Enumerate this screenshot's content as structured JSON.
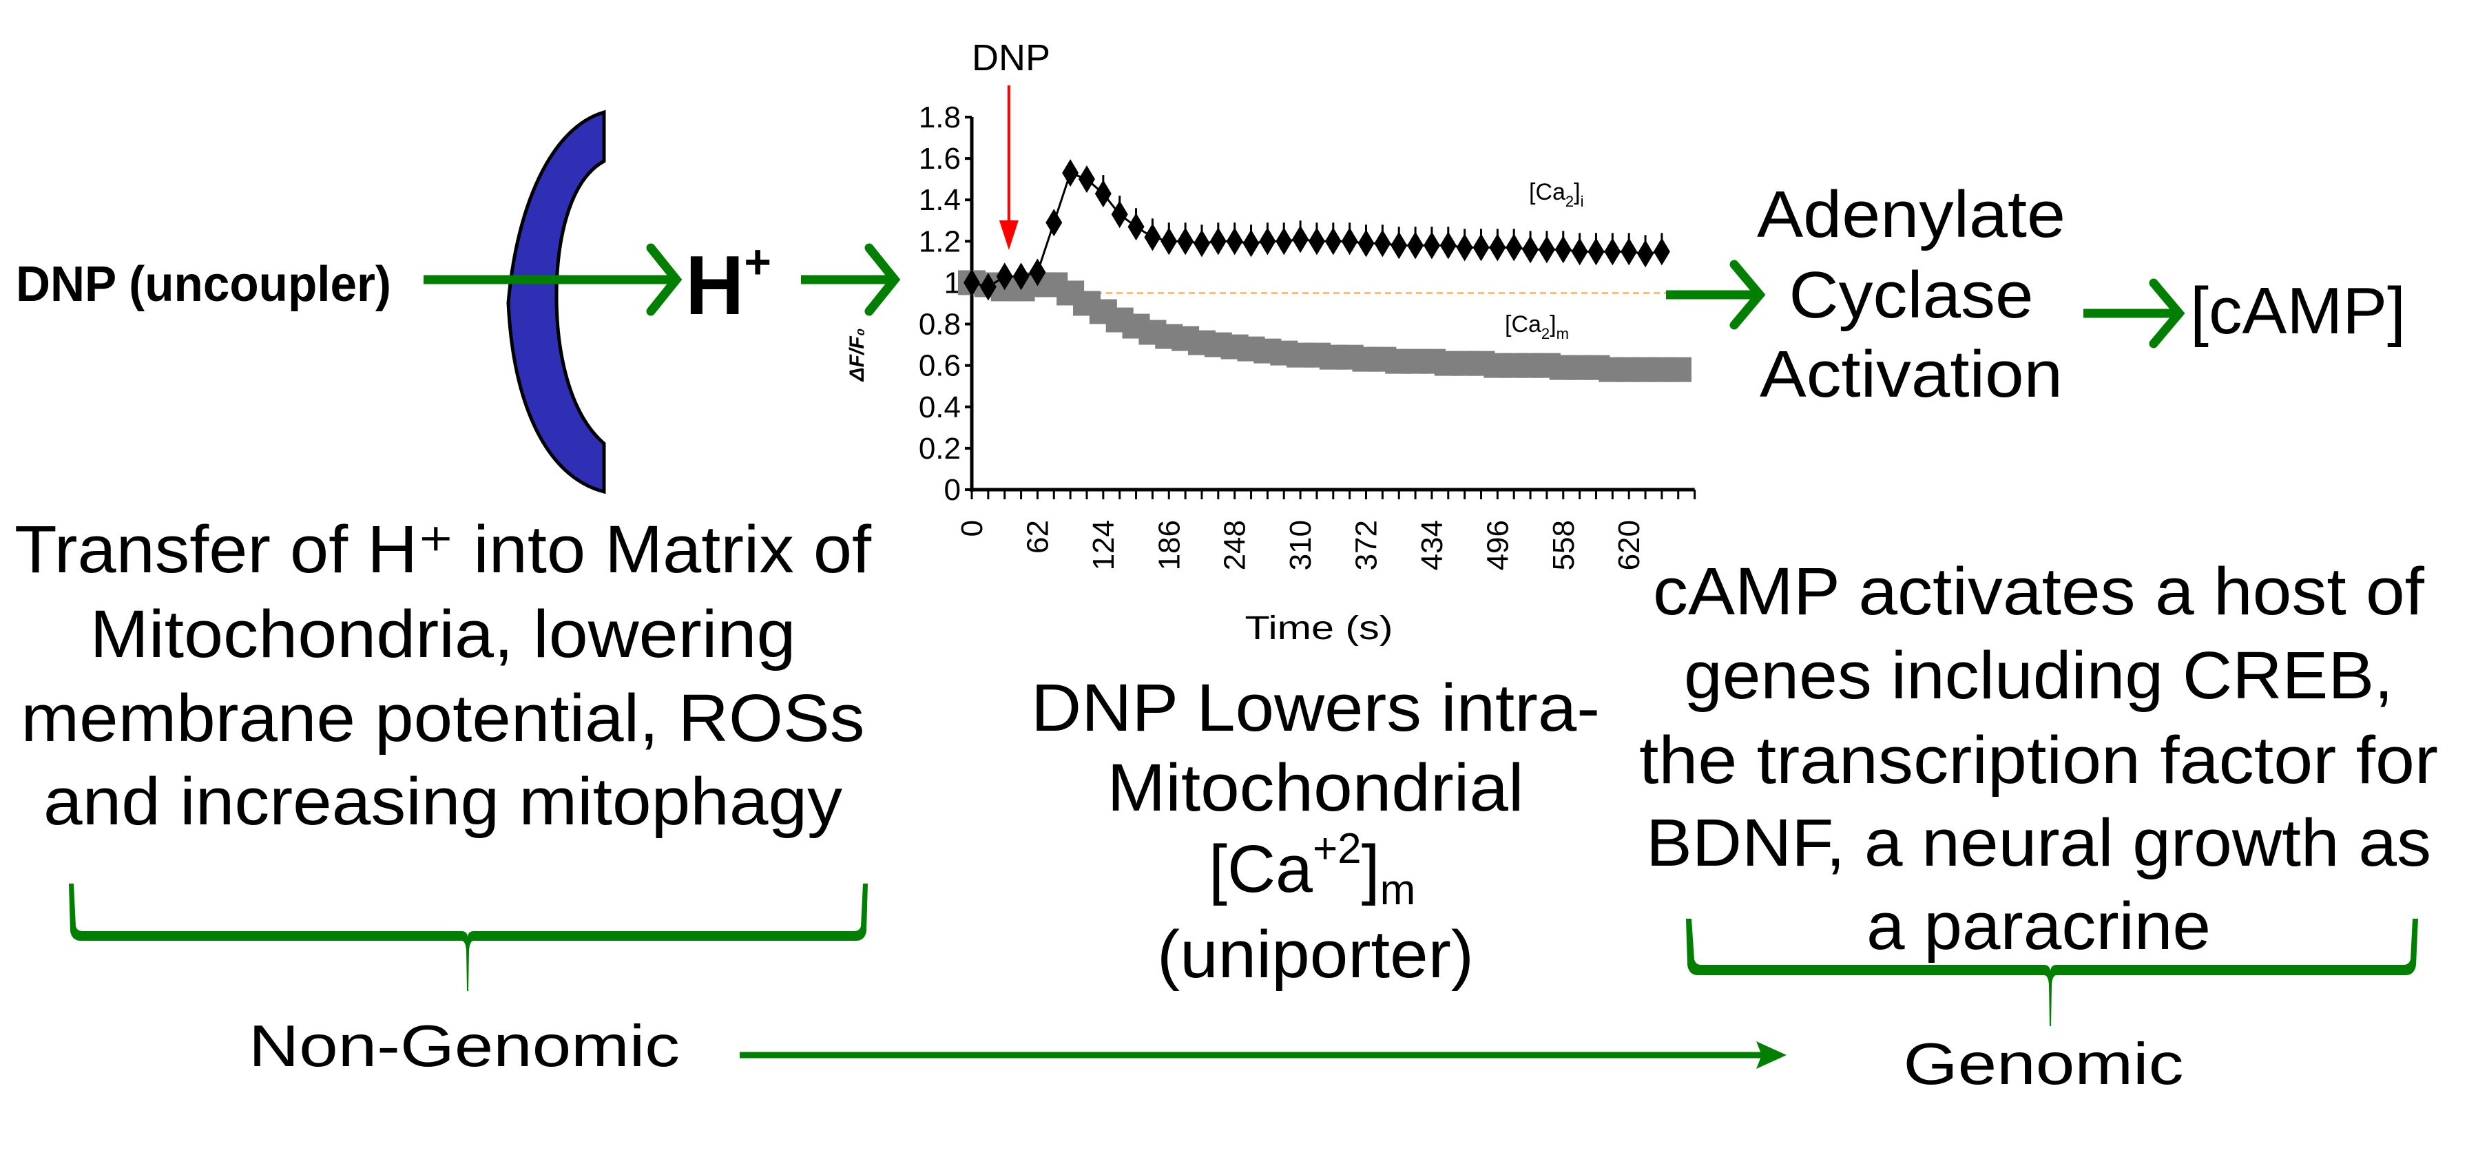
{
  "colors": {
    "arrow_green": "#007f00",
    "membrane_fill": "#2f2fb5",
    "dnp_text": "#0a0a8c",
    "dnp_marker_arrow": "#ff0000",
    "baseline_dash": "#f5b25a",
    "ca_i_series": "#000000",
    "ca_m_series": "#808080"
  },
  "left": {
    "dnp_label": "DNP (uncoupler)",
    "h_ion": {
      "base": "H",
      "sup": "+"
    },
    "description_lines": [
      "Transfer of H⁺ into Matrix of",
      "Mitochondria, lowering",
      "membrane potential, ROSs",
      "and increasing mitophagy"
    ],
    "category": "Non-Genomic"
  },
  "middle": {
    "dnp_marker_label": "DNP",
    "description_lines": [
      "DNP Lowers intra-",
      "Mitochondrial"
    ],
    "ca_label": {
      "base": "[Ca",
      "sup": "+2",
      "close": "]",
      "sub": "m"
    },
    "last_line": "(uniporter)"
  },
  "right": {
    "enzyme_lines": [
      "Adenylate",
      "Cyclase",
      "Activation"
    ],
    "camp": "[cAMP]",
    "description_lines": [
      "cAMP activates a host of",
      "genes including CREB,",
      "the transcription factor for",
      "BDNF, a neural growth as",
      "a paracrine"
    ],
    "category": "Genomic"
  },
  "chart_data": {
    "type": "line",
    "xlabel": "Time (s)",
    "ylabel": "ΔF/F₀",
    "xlim": [
      0,
      682
    ],
    "ylim": [
      0,
      1.8
    ],
    "x_tick_labels": [
      "0",
      "62",
      "124",
      "186",
      "248",
      "310",
      "372",
      "434",
      "496",
      "558",
      "620"
    ],
    "y_tick_labels": [
      "0",
      "0.2",
      "0.4",
      "0.6",
      "0.8",
      "1",
      "1.2",
      "1.4",
      "1.6",
      "1.8"
    ],
    "reference_line": 0.95,
    "dnp_added_at": 35,
    "grid": false,
    "series": [
      {
        "label": {
          "base": "[Ca",
          "sub1": "2",
          "close": "]",
          "sub2": "i"
        },
        "marker": "diamond",
        "x": [
          0,
          15.5,
          31,
          46.5,
          62,
          77.5,
          93,
          108.5,
          124,
          139.5,
          155,
          170.5,
          186,
          201.5,
          217,
          232.5,
          248,
          263.5,
          279,
          294.5,
          310,
          325.5,
          341,
          356.5,
          372,
          387.5,
          403,
          418.5,
          434,
          449.5,
          465,
          480.5,
          496,
          511.5,
          527,
          542.5,
          558,
          573.5,
          589,
          604.5,
          620,
          635.5,
          651
        ],
        "y": [
          1.0,
          0.98,
          1.03,
          1.03,
          1.05,
          1.29,
          1.53,
          1.5,
          1.43,
          1.33,
          1.27,
          1.22,
          1.2,
          1.2,
          1.19,
          1.2,
          1.2,
          1.19,
          1.2,
          1.2,
          1.21,
          1.2,
          1.2,
          1.2,
          1.19,
          1.19,
          1.18,
          1.18,
          1.18,
          1.18,
          1.17,
          1.17,
          1.17,
          1.17,
          1.16,
          1.16,
          1.16,
          1.15,
          1.15,
          1.15,
          1.15,
          1.14,
          1.15
        ],
        "error_upper": 0.09
      },
      {
        "label": {
          "base": "[Ca",
          "sub1": "2",
          "close": "]",
          "sub2": "m"
        },
        "marker": "square",
        "x": [
          0,
          15.5,
          31,
          46.5,
          62,
          77.5,
          93,
          108.5,
          124,
          139.5,
          155,
          170.5,
          186,
          201.5,
          217,
          232.5,
          248,
          263.5,
          279,
          294.5,
          310,
          325.5,
          341,
          356.5,
          372,
          387.5,
          403,
          418.5,
          434,
          449.5,
          465,
          480.5,
          496,
          511.5,
          527,
          542.5,
          558,
          573.5,
          589,
          604.5,
          620,
          635.5,
          651,
          666
        ],
        "y": [
          1.0,
          0.99,
          0.97,
          0.97,
          0.99,
          0.99,
          0.95,
          0.9,
          0.86,
          0.82,
          0.79,
          0.76,
          0.74,
          0.73,
          0.71,
          0.7,
          0.69,
          0.68,
          0.67,
          0.66,
          0.65,
          0.65,
          0.64,
          0.64,
          0.63,
          0.63,
          0.62,
          0.62,
          0.62,
          0.61,
          0.61,
          0.61,
          0.6,
          0.6,
          0.6,
          0.6,
          0.59,
          0.59,
          0.59,
          0.58,
          0.58,
          0.58,
          0.58,
          0.58
        ]
      }
    ]
  }
}
